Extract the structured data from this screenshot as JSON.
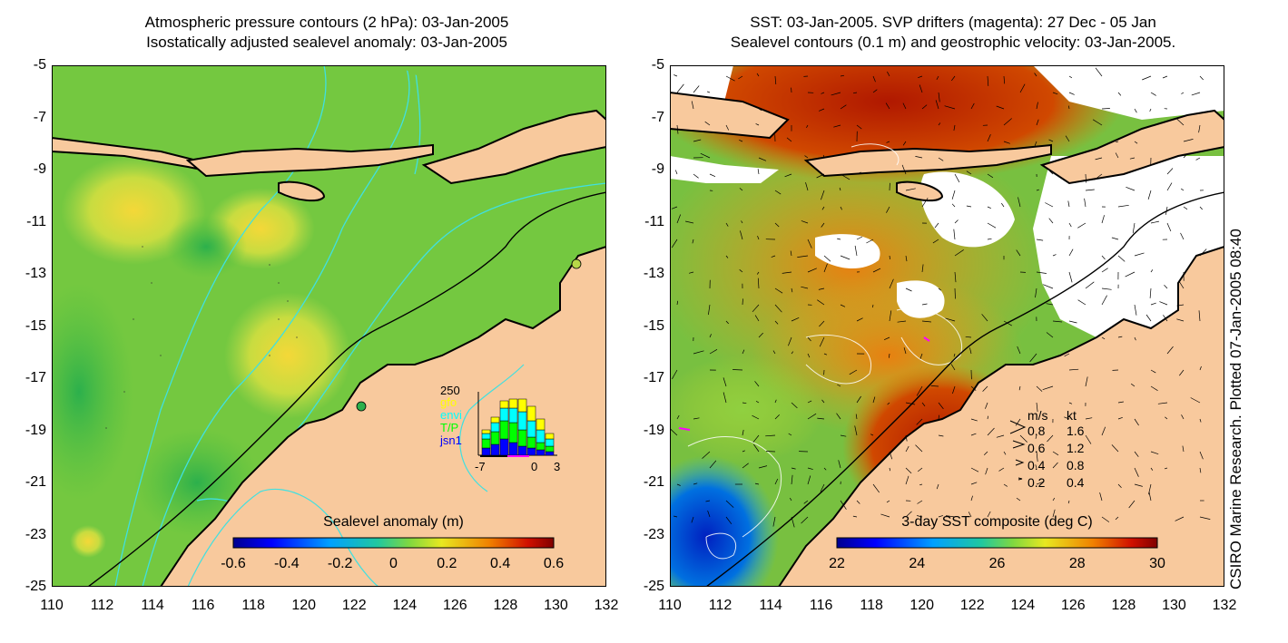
{
  "left_panel": {
    "title_line1": "Atmospheric pressure contours (2 hPa): 03-Jan-2005",
    "title_line2": "Isostatically adjusted sealevel anomaly: 03-Jan-2005",
    "colorbar": {
      "title": "Sealevel anomaly (m)",
      "ticks": [
        "-0.6",
        "-0.4",
        "-0.2",
        "0",
        "0.2",
        "0.4",
        "0.6"
      ],
      "range": [
        -0.6,
        0.6
      ]
    },
    "satellite_histogram": {
      "y_max_label": "250",
      "x_ticks": [
        "-7",
        "0",
        "3"
      ],
      "missions": [
        {
          "name": "gfo",
          "color": "#ffff00"
        },
        {
          "name": "envi",
          "color": "#00ffff"
        },
        {
          "name": "T/P",
          "color": "#00ff00"
        },
        {
          "name": "jsn1",
          "color": "#0000ff"
        }
      ]
    }
  },
  "right_panel": {
    "title_line1": "SST: 03-Jan-2005. SVP drifters (magenta): 27 Dec - 05 Jan",
    "title_line2": "Sealevel contours (0.1 m) and geostrophic velocity: 03-Jan-2005.",
    "colorbar": {
      "title": "3-day SST composite (deg C)",
      "ticks": [
        "22",
        "24",
        "26",
        "28",
        "30"
      ],
      "range": [
        22,
        30
      ]
    },
    "velocity_legend": {
      "header_ms": "m/s",
      "header_kt": "kt",
      "rows": [
        {
          "ms": "0.8",
          "kt": "1.6"
        },
        {
          "ms": "0.6",
          "kt": "1.2"
        },
        {
          "ms": "0.4",
          "kt": "0.8"
        },
        {
          "ms": "0.2",
          "kt": "0.4"
        }
      ]
    },
    "side_credit": "CSIRO Marine Research. Plotted 07-Jan-2005 08:40"
  },
  "axes": {
    "lat_ticks": [
      "-5",
      "-7",
      "-9",
      "-11",
      "-13",
      "-15",
      "-17",
      "-19",
      "-21",
      "-23",
      "-25"
    ],
    "lon_ticks": [
      "110",
      "112",
      "114",
      "116",
      "118",
      "120",
      "122",
      "124",
      "126",
      "128",
      "130",
      "132"
    ],
    "lat_range": [
      -25,
      -5
    ],
    "lon_range": [
      110,
      132
    ]
  },
  "colors": {
    "land": "#f8c99d",
    "coastline": "#000000",
    "contour_cyan": "#40e0e0",
    "drifter": "#ff00ff"
  }
}
